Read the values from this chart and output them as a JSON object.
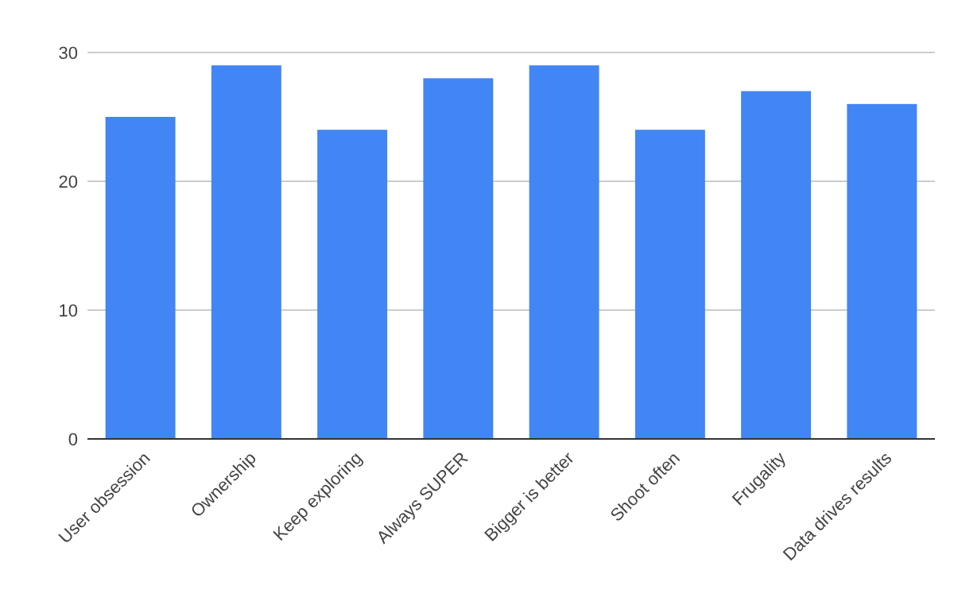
{
  "chart_data": {
    "type": "bar",
    "categories": [
      "User obsession",
      "Ownership",
      "Keep exploring",
      "Always SUPER",
      "Bigger is better",
      "Shoot often",
      "Frugality",
      "Data drives results"
    ],
    "values": [
      25,
      29,
      24,
      28,
      29,
      24,
      27,
      26
    ],
    "color": "#4285f4",
    "ylim": [
      0,
      30
    ],
    "yticks": [
      0,
      10,
      20,
      30
    ],
    "grid": "y"
  }
}
